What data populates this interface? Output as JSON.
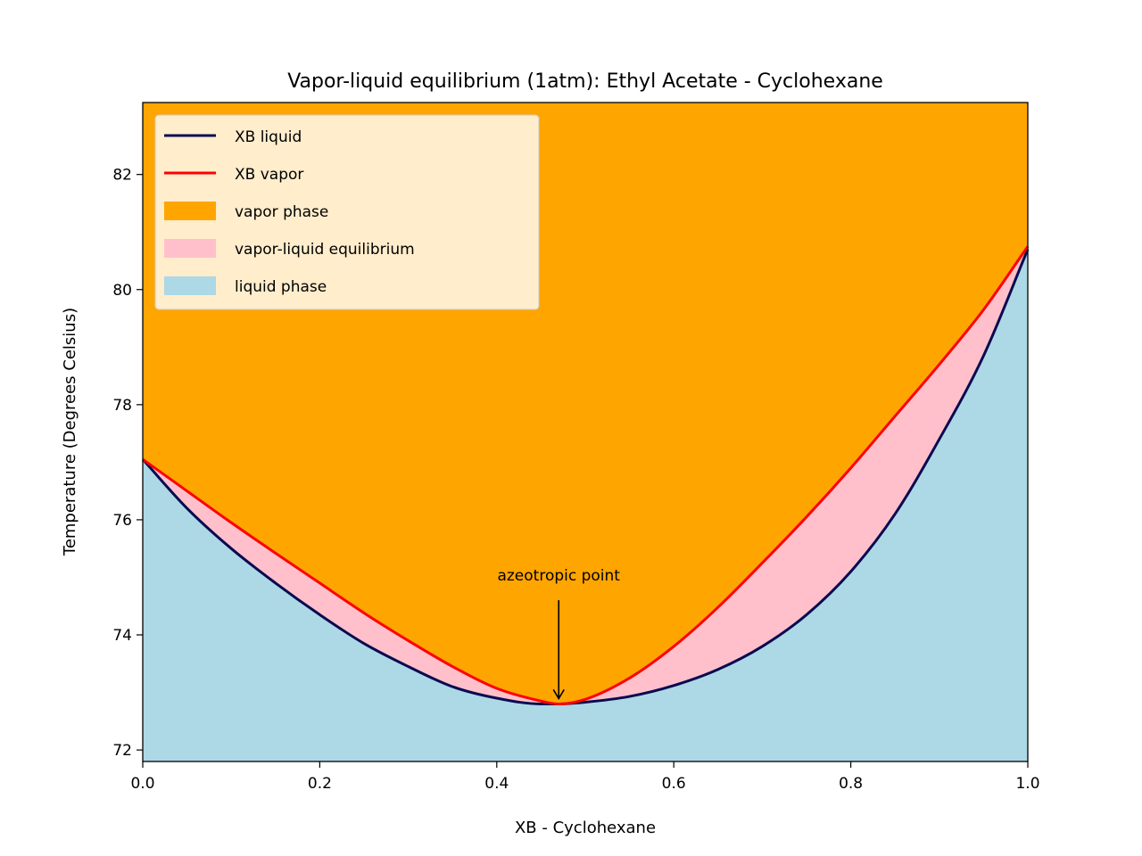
{
  "chart_data": {
    "type": "area",
    "title": "Vapor-liquid equilibrium (1atm): Ethyl Acetate - Cyclohexane",
    "xlabel": "XB - Cyclohexane",
    "ylabel": "Temperature (Degrees Celsius)",
    "xlim": [
      0.0,
      1.0
    ],
    "ylim": [
      71.8,
      83.25
    ],
    "xticks": [
      0.0,
      0.2,
      0.4,
      0.6,
      0.8,
      1.0
    ],
    "xtick_labels": [
      "0.0",
      "0.2",
      "0.4",
      "0.6",
      "0.8",
      "1.0"
    ],
    "yticks": [
      72,
      74,
      76,
      78,
      80,
      82
    ],
    "ytick_labels": [
      "72",
      "74",
      "76",
      "78",
      "80",
      "82"
    ],
    "grid": false,
    "legend_position": "top-left",
    "legend": [
      {
        "label": "XB liquid",
        "kind": "line",
        "color": "#0a0a50"
      },
      {
        "label": "XB vapor",
        "kind": "line",
        "color": "#ff0000"
      },
      {
        "label": "vapor phase",
        "kind": "patch",
        "color": "#ffa500"
      },
      {
        "label": "vapor-liquid equilibrium",
        "kind": "patch",
        "color": "#ffc0cb"
      },
      {
        "label": "liquid phase",
        "kind": "patch",
        "color": "#add8e6"
      }
    ],
    "series": [
      {
        "name": "XB liquid",
        "color": "#0a0a50",
        "x": [
          0.0,
          0.05,
          0.1,
          0.15,
          0.2,
          0.25,
          0.3,
          0.35,
          0.4,
          0.45,
          0.47,
          0.5,
          0.55,
          0.6,
          0.65,
          0.7,
          0.75,
          0.8,
          0.85,
          0.9,
          0.95,
          1.0
        ],
        "y": [
          77.05,
          76.2,
          75.5,
          74.9,
          74.35,
          73.85,
          73.45,
          73.1,
          72.9,
          72.8,
          72.8,
          72.83,
          72.93,
          73.12,
          73.4,
          73.8,
          74.35,
          75.1,
          76.1,
          77.4,
          78.85,
          80.7
        ]
      },
      {
        "name": "XB vapor",
        "color": "#ff0000",
        "x": [
          0.0,
          0.05,
          0.1,
          0.15,
          0.2,
          0.25,
          0.3,
          0.35,
          0.4,
          0.45,
          0.47,
          0.5,
          0.55,
          0.6,
          0.65,
          0.7,
          0.75,
          0.8,
          0.85,
          0.9,
          0.95,
          1.0
        ],
        "y": [
          77.05,
          76.5,
          75.95,
          75.42,
          74.9,
          74.38,
          73.9,
          73.45,
          73.07,
          72.85,
          72.8,
          72.88,
          73.25,
          73.8,
          74.48,
          75.25,
          76.05,
          76.9,
          77.8,
          78.7,
          79.65,
          80.75
        ]
      }
    ],
    "annotations": [
      {
        "text": "azeotropic point",
        "x": 0.47,
        "y": 72.8,
        "text_y": 74.85
      }
    ]
  }
}
